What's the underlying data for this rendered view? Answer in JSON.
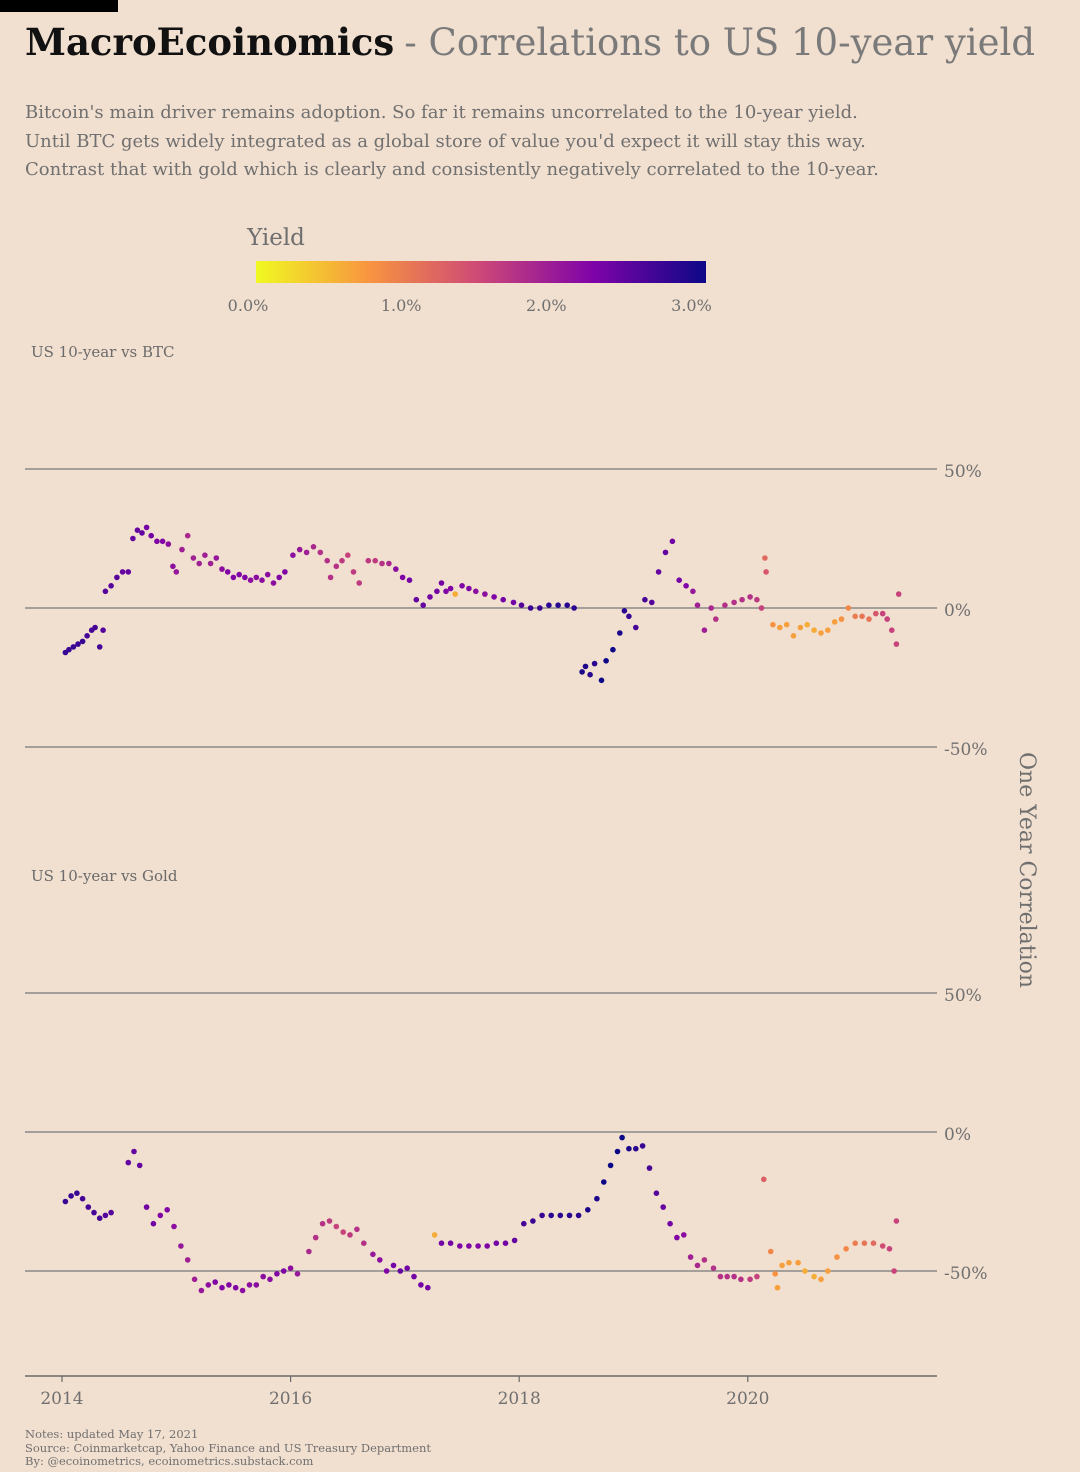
{
  "header": {
    "brand": "MacroEcoinomics",
    "subtitle": "- Correlations to US 10-year yield",
    "description": [
      "Bitcoin's main driver remains adoption. So far it remains uncorrelated to the 10-year yield.",
      "Until BTC gets widely integrated as a global store of value you'd expect it will stay this way.",
      "Contrast that with gold which is clearly and consistently negatively correlated to the 10-year."
    ]
  },
  "legend": {
    "title": "Yield",
    "ticks": [
      "0.0%",
      "1.0%",
      "2.0%",
      "3.0%"
    ],
    "range": [
      0,
      3.1
    ],
    "stops": [
      "#f0f921",
      "#f89540",
      "#cc4778",
      "#7e03a8",
      "#0d0887"
    ]
  },
  "y_axis_label": "One Year Correlation",
  "x_ticks": [
    "2014",
    "2016",
    "2018",
    "2020"
  ],
  "notes": [
    "Notes: updated May 17, 2021",
    "Source: Coinmarketcap, Yahoo Finance and US Treasury Department",
    "By: @ecoinometrics, ecoinometrics.substack.com"
  ],
  "chart_data": [
    {
      "type": "scatter",
      "title": "US 10-year vs BTC",
      "x_unit": "year",
      "y_unit": "correlation %",
      "color_by": "yield %",
      "yticks": [
        "50%",
        "0%",
        "-50%"
      ],
      "ylim": [
        -50,
        50
      ],
      "xlim": [
        2013.7,
        2021.6
      ],
      "points": [
        [
          2014.03,
          -16,
          2.8
        ],
        [
          2014.06,
          -15,
          2.8
        ],
        [
          2014.1,
          -14,
          2.8
        ],
        [
          2014.14,
          -13,
          2.8
        ],
        [
          2014.18,
          -12,
          2.8
        ],
        [
          2014.22,
          -10,
          2.7
        ],
        [
          2014.26,
          -8,
          2.7
        ],
        [
          2014.29,
          -7,
          2.7
        ],
        [
          2014.33,
          -14,
          2.7
        ],
        [
          2014.36,
          -8,
          2.6
        ],
        [
          2014.38,
          6,
          2.6
        ],
        [
          2014.43,
          8,
          2.6
        ],
        [
          2014.48,
          11,
          2.6
        ],
        [
          2014.53,
          13,
          2.5
        ],
        [
          2014.58,
          13,
          2.5
        ],
        [
          2014.62,
          25,
          2.5
        ],
        [
          2014.66,
          28,
          2.5
        ],
        [
          2014.7,
          27,
          2.5
        ],
        [
          2014.74,
          29,
          2.4
        ],
        [
          2014.78,
          26,
          2.4
        ],
        [
          2014.83,
          24,
          2.3
        ],
        [
          2014.88,
          24,
          2.3
        ],
        [
          2014.93,
          23,
          2.2
        ],
        [
          2014.97,
          15,
          2.2
        ],
        [
          2015.0,
          13,
          2.1
        ],
        [
          2015.05,
          21,
          2.0
        ],
        [
          2015.1,
          26,
          1.9
        ],
        [
          2015.15,
          18,
          2.0
        ],
        [
          2015.2,
          16,
          2.0
        ],
        [
          2015.25,
          19,
          2.0
        ],
        [
          2015.3,
          16,
          2.0
        ],
        [
          2015.35,
          18,
          2.1
        ],
        [
          2015.4,
          14,
          2.2
        ],
        [
          2015.45,
          13,
          2.3
        ],
        [
          2015.5,
          11,
          2.3
        ],
        [
          2015.55,
          12,
          2.3
        ],
        [
          2015.6,
          11,
          2.3
        ],
        [
          2015.65,
          10,
          2.2
        ],
        [
          2015.7,
          11,
          2.2
        ],
        [
          2015.75,
          10,
          2.2
        ],
        [
          2015.8,
          12,
          2.2
        ],
        [
          2015.85,
          9,
          2.2
        ],
        [
          2015.9,
          11,
          2.3
        ],
        [
          2015.95,
          13,
          2.3
        ],
        [
          2016.02,
          19,
          2.2
        ],
        [
          2016.08,
          21,
          2.1
        ],
        [
          2016.14,
          20,
          2.0
        ],
        [
          2016.2,
          22,
          1.9
        ],
        [
          2016.26,
          20,
          1.8
        ],
        [
          2016.32,
          17,
          1.8
        ],
        [
          2016.35,
          11,
          1.8
        ],
        [
          2016.4,
          15,
          1.8
        ],
        [
          2016.45,
          17,
          1.7
        ],
        [
          2016.5,
          19,
          1.6
        ],
        [
          2016.55,
          13,
          1.7
        ],
        [
          2016.6,
          9,
          1.7
        ],
        [
          2016.68,
          17,
          1.7
        ],
        [
          2016.74,
          17,
          1.7
        ],
        [
          2016.8,
          16,
          1.8
        ],
        [
          2016.86,
          16,
          1.9
        ],
        [
          2016.92,
          14,
          2.2
        ],
        [
          2016.98,
          11,
          2.3
        ],
        [
          2017.04,
          10,
          2.4
        ],
        [
          2017.1,
          3,
          2.5
        ],
        [
          2017.16,
          1,
          2.5
        ],
        [
          2017.22,
          4,
          2.4
        ],
        [
          2017.28,
          6,
          2.4
        ],
        [
          2017.32,
          9,
          2.4
        ],
        [
          2017.36,
          6,
          2.3
        ],
        [
          2017.4,
          7,
          2.3
        ],
        [
          2017.44,
          5,
          0.6
        ],
        [
          2017.5,
          8,
          2.3
        ],
        [
          2017.56,
          7,
          2.3
        ],
        [
          2017.62,
          6,
          2.2
        ],
        [
          2017.7,
          5,
          2.2
        ],
        [
          2017.78,
          4,
          2.3
        ],
        [
          2017.86,
          3,
          2.4
        ],
        [
          2017.95,
          2,
          2.4
        ],
        [
          2018.02,
          1,
          2.6
        ],
        [
          2018.1,
          0,
          2.8
        ],
        [
          2018.18,
          0,
          2.8
        ],
        [
          2018.26,
          1,
          2.9
        ],
        [
          2018.34,
          1,
          2.9
        ],
        [
          2018.42,
          1,
          2.9
        ],
        [
          2018.48,
          0,
          2.9
        ],
        [
          2018.55,
          -23,
          3.0
        ],
        [
          2018.58,
          -21,
          3.0
        ],
        [
          2018.62,
          -24,
          2.9
        ],
        [
          2018.66,
          -20,
          2.9
        ],
        [
          2018.72,
          -26,
          3.1
        ],
        [
          2018.76,
          -19,
          3.1
        ],
        [
          2018.82,
          -15,
          3.2
        ],
        [
          2018.88,
          -9,
          3.0
        ],
        [
          2018.92,
          -1,
          2.9
        ],
        [
          2018.96,
          -3,
          2.8
        ],
        [
          2019.02,
          -7,
          2.7
        ],
        [
          2019.1,
          3,
          2.7
        ],
        [
          2019.16,
          2,
          2.6
        ],
        [
          2019.22,
          13,
          2.5
        ],
        [
          2019.28,
          20,
          2.5
        ],
        [
          2019.34,
          24,
          2.4
        ],
        [
          2019.4,
          10,
          2.4
        ],
        [
          2019.46,
          8,
          2.3
        ],
        [
          2019.52,
          6,
          2.1
        ],
        [
          2019.56,
          1,
          2.0
        ],
        [
          2019.62,
          -8,
          2.0
        ],
        [
          2019.68,
          0,
          1.9
        ],
        [
          2019.72,
          -4,
          1.8
        ],
        [
          2019.8,
          1,
          1.8
        ],
        [
          2019.88,
          2,
          1.8
        ],
        [
          2019.95,
          3,
          1.8
        ],
        [
          2020.02,
          4,
          1.8
        ],
        [
          2020.08,
          3,
          1.7
        ],
        [
          2020.12,
          0,
          1.6
        ],
        [
          2020.15,
          18,
          1.2
        ],
        [
          2020.16,
          13,
          1.4
        ],
        [
          2020.22,
          -6,
          0.8
        ],
        [
          2020.28,
          -7,
          0.7
        ],
        [
          2020.34,
          -6,
          0.7
        ],
        [
          2020.4,
          -10,
          0.7
        ],
        [
          2020.46,
          -7,
          0.7
        ],
        [
          2020.52,
          -6,
          0.6
        ],
        [
          2020.58,
          -8,
          0.6
        ],
        [
          2020.64,
          -9,
          0.7
        ],
        [
          2020.7,
          -8,
          0.7
        ],
        [
          2020.76,
          -5,
          0.7
        ],
        [
          2020.82,
          -4,
          0.8
        ],
        [
          2020.88,
          0,
          0.9
        ],
        [
          2020.94,
          -3,
          1.0
        ],
        [
          2021.0,
          -3,
          1.1
        ],
        [
          2021.06,
          -4,
          1.1
        ],
        [
          2021.12,
          -2,
          1.4
        ],
        [
          2021.18,
          -2,
          1.6
        ],
        [
          2021.22,
          -4,
          1.6
        ],
        [
          2021.26,
          -8,
          1.6
        ],
        [
          2021.3,
          -13,
          1.6
        ],
        [
          2021.32,
          5,
          1.6
        ]
      ]
    },
    {
      "type": "scatter",
      "title": "US 10-year vs Gold",
      "x_unit": "year",
      "y_unit": "correlation %",
      "color_by": "yield %",
      "yticks": [
        "50%",
        "0%",
        "-50%"
      ],
      "ylim": [
        -50,
        50
      ],
      "xlim": [
        2013.7,
        2021.6
      ],
      "points": [
        [
          2014.03,
          -25,
          2.8
        ],
        [
          2014.08,
          -23,
          2.8
        ],
        [
          2014.13,
          -22,
          2.8
        ],
        [
          2014.18,
          -24,
          2.7
        ],
        [
          2014.23,
          -27,
          2.7
        ],
        [
          2014.28,
          -29,
          2.7
        ],
        [
          2014.33,
          -31,
          2.7
        ],
        [
          2014.38,
          -30,
          2.6
        ],
        [
          2014.43,
          -29,
          2.6
        ],
        [
          2014.58,
          -11,
          2.5
        ],
        [
          2014.63,
          -7,
          2.5
        ],
        [
          2014.68,
          -12,
          2.5
        ],
        [
          2014.74,
          -27,
          2.4
        ],
        [
          2014.8,
          -33,
          2.4
        ],
        [
          2014.86,
          -30,
          2.3
        ],
        [
          2014.92,
          -28,
          2.3
        ],
        [
          2014.98,
          -34,
          2.2
        ],
        [
          2015.04,
          -41,
          2.1
        ],
        [
          2015.1,
          -46,
          2.0
        ],
        [
          2015.16,
          -53,
          2.0
        ],
        [
          2015.22,
          -57,
          2.1
        ],
        [
          2015.28,
          -55,
          2.2
        ],
        [
          2015.34,
          -54,
          2.3
        ],
        [
          2015.4,
          -56,
          2.3
        ],
        [
          2015.46,
          -55,
          2.3
        ],
        [
          2015.52,
          -56,
          2.3
        ],
        [
          2015.58,
          -57,
          2.2
        ],
        [
          2015.64,
          -55,
          2.2
        ],
        [
          2015.7,
          -55,
          2.2
        ],
        [
          2015.76,
          -52,
          2.2
        ],
        [
          2015.82,
          -53,
          2.2
        ],
        [
          2015.88,
          -51,
          2.3
        ],
        [
          2015.94,
          -50,
          2.3
        ],
        [
          2016.0,
          -49,
          2.2
        ],
        [
          2016.06,
          -51,
          2.1
        ],
        [
          2016.16,
          -43,
          1.9
        ],
        [
          2016.22,
          -38,
          1.8
        ],
        [
          2016.28,
          -33,
          1.8
        ],
        [
          2016.34,
          -32,
          1.7
        ],
        [
          2016.4,
          -34,
          1.6
        ],
        [
          2016.46,
          -36,
          1.6
        ],
        [
          2016.52,
          -37,
          1.7
        ],
        [
          2016.58,
          -35,
          1.8
        ],
        [
          2016.64,
          -40,
          1.8
        ],
        [
          2016.72,
          -44,
          2.1
        ],
        [
          2016.78,
          -46,
          2.2
        ],
        [
          2016.84,
          -50,
          2.3
        ],
        [
          2016.9,
          -48,
          2.4
        ],
        [
          2016.96,
          -50,
          2.5
        ],
        [
          2017.02,
          -49,
          2.4
        ],
        [
          2017.08,
          -52,
          2.4
        ],
        [
          2017.14,
          -55,
          2.4
        ],
        [
          2017.2,
          -56,
          2.4
        ],
        [
          2017.26,
          -37,
          0.6
        ],
        [
          2017.32,
          -40,
          2.4
        ],
        [
          2017.4,
          -40,
          2.4
        ],
        [
          2017.48,
          -41,
          2.3
        ],
        [
          2017.56,
          -41,
          2.3
        ],
        [
          2017.64,
          -41,
          2.3
        ],
        [
          2017.72,
          -41,
          2.3
        ],
        [
          2017.8,
          -40,
          2.4
        ],
        [
          2017.88,
          -40,
          2.4
        ],
        [
          2017.96,
          -39,
          2.5
        ],
        [
          2018.04,
          -33,
          2.7
        ],
        [
          2018.12,
          -32,
          2.8
        ],
        [
          2018.2,
          -30,
          2.8
        ],
        [
          2018.28,
          -30,
          2.9
        ],
        [
          2018.36,
          -30,
          2.9
        ],
        [
          2018.44,
          -30,
          2.9
        ],
        [
          2018.52,
          -30,
          2.9
        ],
        [
          2018.6,
          -28,
          3.0
        ],
        [
          2018.68,
          -24,
          3.0
        ],
        [
          2018.74,
          -18,
          3.1
        ],
        [
          2018.8,
          -12,
          3.1
        ],
        [
          2018.86,
          -7,
          3.2
        ],
        [
          2018.9,
          -2,
          3.1
        ],
        [
          2018.96,
          -6,
          3.0
        ],
        [
          2019.02,
          -6,
          2.9
        ],
        [
          2019.08,
          -5,
          2.8
        ],
        [
          2019.14,
          -13,
          2.7
        ],
        [
          2019.2,
          -22,
          2.6
        ],
        [
          2019.26,
          -27,
          2.5
        ],
        [
          2019.32,
          -33,
          2.4
        ],
        [
          2019.38,
          -38,
          2.3
        ],
        [
          2019.44,
          -37,
          2.2
        ],
        [
          2019.5,
          -45,
          2.0
        ],
        [
          2019.56,
          -48,
          1.9
        ],
        [
          2019.62,
          -46,
          1.8
        ],
        [
          2019.7,
          -49,
          1.8
        ],
        [
          2019.76,
          -52,
          1.8
        ],
        [
          2019.82,
          -52,
          1.8
        ],
        [
          2019.88,
          -52,
          1.8
        ],
        [
          2019.94,
          -53,
          1.8
        ],
        [
          2020.02,
          -53,
          1.7
        ],
        [
          2020.08,
          -52,
          1.6
        ],
        [
          2020.14,
          -17,
          1.3
        ],
        [
          2020.2,
          -43,
          0.9
        ],
        [
          2020.24,
          -51,
          0.8
        ],
        [
          2020.26,
          -56,
          0.7
        ],
        [
          2020.3,
          -48,
          0.7
        ],
        [
          2020.36,
          -47,
          0.7
        ],
        [
          2020.44,
          -47,
          0.7
        ],
        [
          2020.5,
          -50,
          0.6
        ],
        [
          2020.58,
          -52,
          0.6
        ],
        [
          2020.64,
          -53,
          0.7
        ],
        [
          2020.7,
          -50,
          0.7
        ],
        [
          2020.78,
          -45,
          0.8
        ],
        [
          2020.86,
          -42,
          0.9
        ],
        [
          2020.94,
          -40,
          1.0
        ],
        [
          2021.02,
          -40,
          1.1
        ],
        [
          2021.1,
          -40,
          1.2
        ],
        [
          2021.18,
          -41,
          1.5
        ],
        [
          2021.24,
          -42,
          1.6
        ],
        [
          2021.28,
          -50,
          1.6
        ],
        [
          2021.3,
          -32,
          1.6
        ]
      ]
    }
  ]
}
